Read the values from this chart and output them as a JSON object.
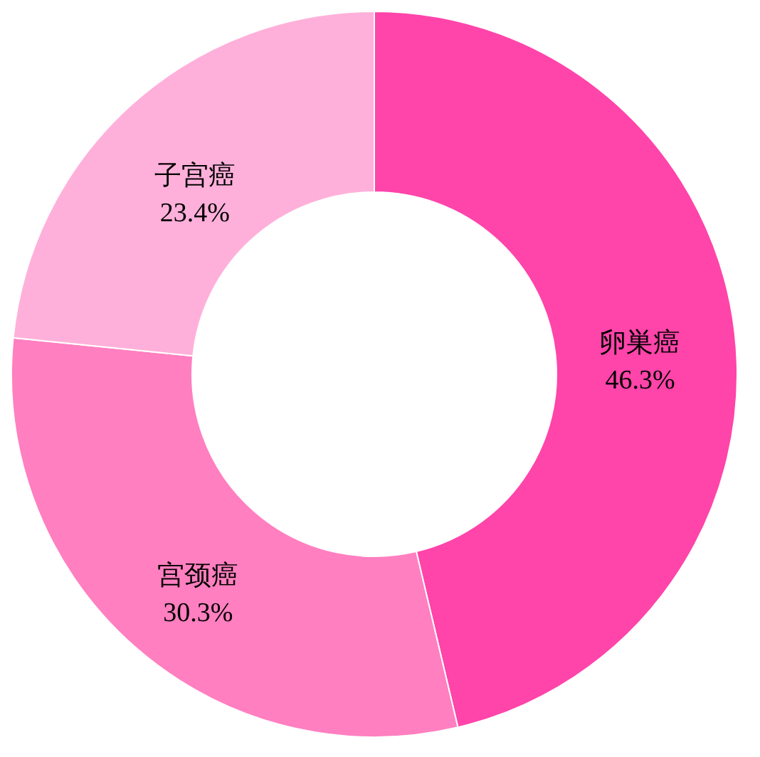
{
  "chart_data": {
    "type": "donut",
    "categories": [
      "卵巣癌",
      "宫颈癌",
      "子宫癌"
    ],
    "values": [
      46.3,
      30.3,
      23.4
    ],
    "colors": [
      "#ff44aa",
      "#ff7fc0",
      "#ffb0da"
    ],
    "value_labels": [
      "46.3%",
      "30.3%",
      "23.4%"
    ]
  }
}
